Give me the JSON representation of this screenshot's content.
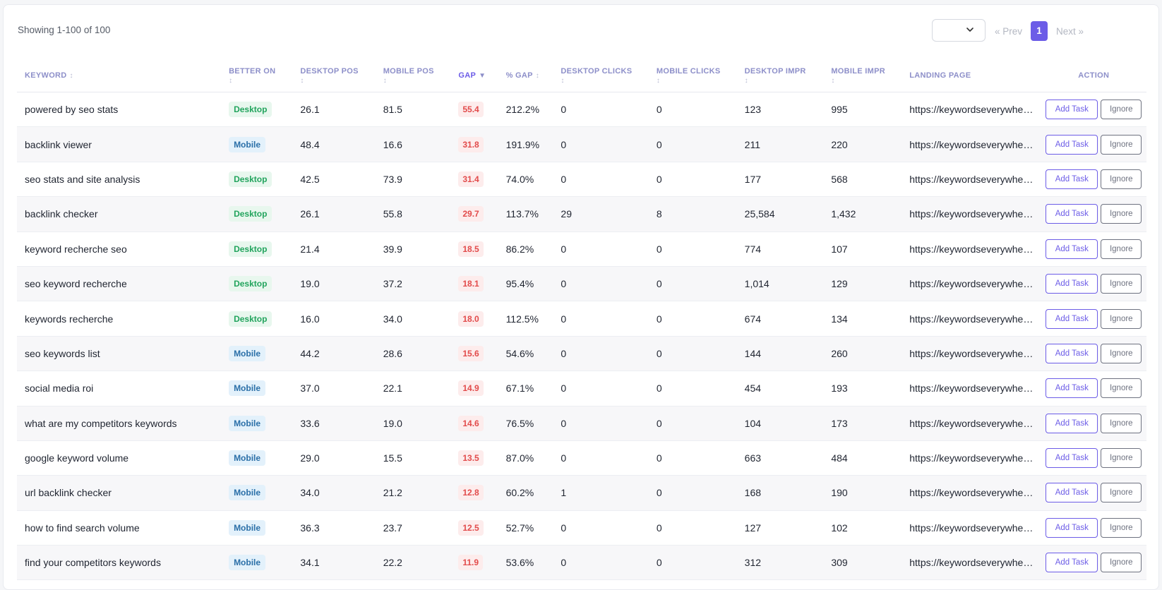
{
  "summary": {
    "showing": "Showing 1-100 of 100"
  },
  "pagination": {
    "prev": "« Prev",
    "current": "1",
    "next": "Next »",
    "per_page_value": ""
  },
  "columns": {
    "keyword": "KEYWORD",
    "better_on": "BETTER ON",
    "desktop_pos": "DESKTOP POS",
    "mobile_pos": "MOBILE POS",
    "gap": "GAP",
    "pct_gap": "% GAP",
    "desktop_clicks": "DESKTOP CLICKS",
    "mobile_clicks": "MOBILE CLICKS",
    "desktop_impr": "DESKTOP IMPR",
    "mobile_impr": "MOBILE IMPR",
    "landing_page": "LANDING PAGE",
    "action": "ACTION"
  },
  "sort": {
    "neutral_icon": "↕",
    "desc_icon": "▼"
  },
  "actions": {
    "add_task": "Add Task",
    "ignore": "Ignore"
  },
  "colors": {
    "accent": "#6c5ce7",
    "desktop_badge": "#22a45d",
    "mobile_badge": "#2a6fa8",
    "gap_badge": "#e24b4b"
  },
  "rows": [
    {
      "keyword": "powered by seo stats",
      "better_on": "Desktop",
      "desktop_pos": "26.1",
      "mobile_pos": "81.5",
      "gap": "55.4",
      "pct_gap": "212.2%",
      "desktop_clicks": "0",
      "mobile_clicks": "0",
      "desktop_impr": "123",
      "mobile_impr": "995",
      "landing_page": "https://keywordseverywhere.com/"
    },
    {
      "keyword": "backlink viewer",
      "better_on": "Mobile",
      "desktop_pos": "48.4",
      "mobile_pos": "16.6",
      "gap": "31.8",
      "pct_gap": "191.9%",
      "desktop_clicks": "0",
      "mobile_clicks": "0",
      "desktop_impr": "211",
      "mobile_impr": "220",
      "landing_page": "https://keywordseverywhere.com/"
    },
    {
      "keyword": "seo stats and site analysis",
      "better_on": "Desktop",
      "desktop_pos": "42.5",
      "mobile_pos": "73.9",
      "gap": "31.4",
      "pct_gap": "74.0%",
      "desktop_clicks": "0",
      "mobile_clicks": "0",
      "desktop_impr": "177",
      "mobile_impr": "568",
      "landing_page": "https://keywordseverywhere.com/"
    },
    {
      "keyword": "backlink checker",
      "better_on": "Desktop",
      "desktop_pos": "26.1",
      "mobile_pos": "55.8",
      "gap": "29.7",
      "pct_gap": "113.7%",
      "desktop_clicks": "29",
      "mobile_clicks": "8",
      "desktop_impr": "25,584",
      "mobile_impr": "1,432",
      "landing_page": "https://keywordseverywhere.com/"
    },
    {
      "keyword": "keyword recherche seo",
      "better_on": "Desktop",
      "desktop_pos": "21.4",
      "mobile_pos": "39.9",
      "gap": "18.5",
      "pct_gap": "86.2%",
      "desktop_clicks": "0",
      "mobile_clicks": "0",
      "desktop_impr": "774",
      "mobile_impr": "107",
      "landing_page": "https://keywordseverywhere.com/"
    },
    {
      "keyword": "seo keyword recherche",
      "better_on": "Desktop",
      "desktop_pos": "19.0",
      "mobile_pos": "37.2",
      "gap": "18.1",
      "pct_gap": "95.4%",
      "desktop_clicks": "0",
      "mobile_clicks": "0",
      "desktop_impr": "1,014",
      "mobile_impr": "129",
      "landing_page": "https://keywordseverywhere.com/"
    },
    {
      "keyword": "keywords recherche",
      "better_on": "Desktop",
      "desktop_pos": "16.0",
      "mobile_pos": "34.0",
      "gap": "18.0",
      "pct_gap": "112.5%",
      "desktop_clicks": "0",
      "mobile_clicks": "0",
      "desktop_impr": "674",
      "mobile_impr": "134",
      "landing_page": "https://keywordseverywhere.com/"
    },
    {
      "keyword": "seo keywords list",
      "better_on": "Mobile",
      "desktop_pos": "44.2",
      "mobile_pos": "28.6",
      "gap": "15.6",
      "pct_gap": "54.6%",
      "desktop_clicks": "0",
      "mobile_clicks": "0",
      "desktop_impr": "144",
      "mobile_impr": "260",
      "landing_page": "https://keywordseverywhere.com/"
    },
    {
      "keyword": "social media roi",
      "better_on": "Mobile",
      "desktop_pos": "37.0",
      "mobile_pos": "22.1",
      "gap": "14.9",
      "pct_gap": "67.1%",
      "desktop_clicks": "0",
      "mobile_clicks": "0",
      "desktop_impr": "454",
      "mobile_impr": "193",
      "landing_page": "https://keywordseverywhere.com/"
    },
    {
      "keyword": "what are my competitors keywords",
      "better_on": "Mobile",
      "desktop_pos": "33.6",
      "mobile_pos": "19.0",
      "gap": "14.6",
      "pct_gap": "76.5%",
      "desktop_clicks": "0",
      "mobile_clicks": "0",
      "desktop_impr": "104",
      "mobile_impr": "173",
      "landing_page": "https://keywordseverywhere.com/"
    },
    {
      "keyword": "google keyword volume",
      "better_on": "Mobile",
      "desktop_pos": "29.0",
      "mobile_pos": "15.5",
      "gap": "13.5",
      "pct_gap": "87.0%",
      "desktop_clicks": "0",
      "mobile_clicks": "0",
      "desktop_impr": "663",
      "mobile_impr": "484",
      "landing_page": "https://keywordseverywhere.com/"
    },
    {
      "keyword": "url backlink checker",
      "better_on": "Mobile",
      "desktop_pos": "34.0",
      "mobile_pos": "21.2",
      "gap": "12.8",
      "pct_gap": "60.2%",
      "desktop_clicks": "1",
      "mobile_clicks": "0",
      "desktop_impr": "168",
      "mobile_impr": "190",
      "landing_page": "https://keywordseverywhere.com/"
    },
    {
      "keyword": "how to find search volume",
      "better_on": "Mobile",
      "desktop_pos": "36.3",
      "mobile_pos": "23.7",
      "gap": "12.5",
      "pct_gap": "52.7%",
      "desktop_clicks": "0",
      "mobile_clicks": "0",
      "desktop_impr": "127",
      "mobile_impr": "102",
      "landing_page": "https://keywordseverywhere.com/"
    },
    {
      "keyword": "find your competitors keywords",
      "better_on": "Mobile",
      "desktop_pos": "34.1",
      "mobile_pos": "22.2",
      "gap": "11.9",
      "pct_gap": "53.6%",
      "desktop_clicks": "0",
      "mobile_clicks": "0",
      "desktop_impr": "312",
      "mobile_impr": "309",
      "landing_page": "https://keywordseverywhere.com/"
    }
  ]
}
